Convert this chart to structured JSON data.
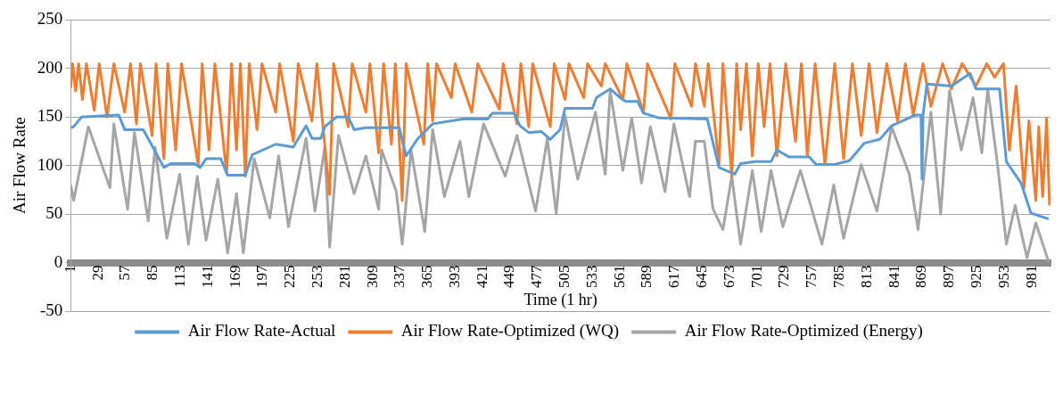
{
  "chart_data": {
    "type": "line",
    "xlabel": "Time (1 hr)",
    "ylabel": "Air Flow Rate",
    "xlim": [
      1,
      1000
    ],
    "xticks": [
      1,
      29,
      57,
      85,
      113,
      141,
      169,
      197,
      225,
      253,
      281,
      309,
      337,
      365,
      393,
      421,
      449,
      477,
      505,
      533,
      561,
      589,
      617,
      645,
      673,
      701,
      729,
      757,
      785,
      813,
      841,
      869,
      897,
      925,
      953,
      981
    ],
    "ylim": [
      -50,
      250
    ],
    "yticks": [
      -50,
      0,
      50,
      100,
      150,
      200,
      250
    ],
    "grid": "y",
    "legend": "bottom",
    "marker": "none",
    "line_style": "solid",
    "series": [
      {
        "name": "Air Flow Rate-Actual",
        "color": "#5b9bd5",
        "x": [
          1,
          4,
          12,
          50,
          56,
          75,
          96,
          103,
          127,
          133,
          139,
          154,
          161,
          179,
          186,
          210,
          228,
          241,
          247,
          256,
          260,
          272,
          284,
          290,
          302,
          336,
          343,
          355,
          370,
          401,
          426,
          431,
          453,
          459,
          468,
          481,
          490,
          500,
          505,
          533,
          537,
          551,
          561,
          567,
          579,
          585,
          601,
          650,
          662,
          678,
          684,
          699,
          715,
          721,
          733,
          754,
          761,
          779,
          795,
          810,
          826,
          838,
          862,
          868,
          869,
          870,
          874,
          899,
          918,
          924,
          948,
          955,
          970,
          980,
          998
        ],
        "values": [
          139,
          140,
          150,
          152,
          137,
          137,
          98,
          102,
          102,
          98,
          107,
          107,
          90,
          90,
          111,
          122,
          119,
          141,
          128,
          128,
          140,
          150,
          150,
          137,
          139,
          139,
          110,
          128,
          143,
          148,
          148,
          154,
          154,
          141,
          134,
          135,
          127,
          137,
          159,
          159,
          170,
          179,
          170,
          166,
          166,
          154,
          149,
          148,
          98,
          91,
          102,
          104,
          104,
          116,
          109,
          109,
          101,
          101,
          105,
          123,
          127,
          141,
          152,
          152,
          86,
          152,
          184,
          182,
          195,
          179,
          179,
          104,
          82,
          51,
          45
        ]
      },
      {
        "name": "Air Flow Rate-Optimized (WQ)",
        "color": "#ed7d31",
        "x": [
          1,
          3,
          6,
          9,
          13,
          17,
          25,
          30,
          38,
          45,
          56,
          62,
          68,
          72,
          84,
          88,
          96,
          100,
          108,
          114,
          131,
          135,
          142,
          148,
          160,
          165,
          170,
          174,
          179,
          183,
          191,
          196,
          210,
          214,
          228,
          233,
          247,
          252,
          265,
          269,
          284,
          288,
          302,
          306,
          315,
          320,
          328,
          332,
          339,
          343,
          361,
          365,
          370,
          374,
          389,
          393,
          410,
          416,
          438,
          442,
          456,
          460,
          468,
          472,
          490,
          494,
          505,
          509,
          524,
          528,
          542,
          546,
          564,
          568,
          585,
          589,
          613,
          617,
          634,
          638,
          647,
          651,
          662,
          666,
          675,
          680,
          684,
          690,
          696,
          702,
          708,
          714,
          721,
          730,
          740,
          746,
          752,
          760,
          770,
          780,
          789,
          798,
          807,
          815,
          823,
          833,
          844,
          852,
          860,
          870,
          878,
          890,
          899,
          910,
          924,
          935,
          943,
          952,
          958,
          965,
          973,
          978,
          985,
          988,
          992,
          996,
          999
        ],
        "values": [
          180,
          205,
          177,
          205,
          168,
          205,
          157,
          205,
          150,
          205,
          155,
          205,
          143,
          205,
          131,
          205,
          107,
          205,
          116,
          205,
          101,
          205,
          116,
          205,
          92,
          205,
          116,
          205,
          89,
          205,
          137,
          205,
          155,
          205,
          125,
          205,
          146,
          205,
          70,
          205,
          140,
          205,
          155,
          205,
          113,
          205,
          122,
          205,
          64,
          205,
          122,
          205,
          146,
          205,
          170,
          205,
          155,
          205,
          158,
          205,
          143,
          205,
          140,
          205,
          140,
          205,
          168,
          205,
          170,
          205,
          182,
          205,
          168,
          205,
          155,
          205,
          148,
          205,
          161,
          205,
          161,
          205,
          101,
          205,
          89,
          205,
          137,
          205,
          110,
          205,
          140,
          205,
          110,
          205,
          125,
          205,
          110,
          205,
          101,
          205,
          107,
          205,
          131,
          205,
          134,
          205,
          146,
          205,
          152,
          205,
          161,
          205,
          179,
          205,
          182,
          205,
          191,
          205,
          116,
          182,
          77,
          146,
          64,
          140,
          68,
          149,
          59
        ]
      },
      {
        "name": "Air Flow Rate-Optimized (Energy)",
        "color": "#a5a5a5",
        "x": [
          1,
          4,
          19,
          41,
          45,
          59,
          66,
          80,
          87,
          99,
          112,
          121,
          130,
          139,
          151,
          161,
          170,
          177,
          188,
          204,
          213,
          223,
          241,
          250,
          260,
          265,
          274,
          290,
          302,
          315,
          318,
          333,
          339,
          348,
          362,
          370,
          382,
          398,
          407,
          422,
          444,
          456,
          475,
          487,
          496,
          505,
          518,
          536,
          546,
          551,
          564,
          573,
          583,
          592,
          607,
          616,
          632,
          638,
          647,
          656,
          666,
          675,
          684,
          696,
          705,
          715,
          727,
          745,
          767,
          779,
          789,
          807,
          823,
          838,
          856,
          865,
          878,
          888,
          897,
          909,
          921,
          930,
          936,
          946,
          955,
          964,
          976,
          985,
          998
        ],
        "values": [
          80,
          64,
          140,
          77,
          143,
          55,
          134,
          43,
          119,
          25,
          91,
          19,
          89,
          23,
          86,
          10,
          71,
          10,
          107,
          46,
          110,
          37,
          128,
          53,
          119,
          16,
          131,
          71,
          110,
          55,
          116,
          73,
          19,
          116,
          32,
          137,
          68,
          125,
          68,
          143,
          89,
          131,
          53,
          128,
          50,
          152,
          86,
          155,
          91,
          177,
          95,
          149,
          82,
          140,
          73,
          143,
          68,
          125,
          125,
          55,
          34,
          89,
          19,
          95,
          32,
          95,
          37,
          95,
          19,
          80,
          25,
          101,
          53,
          140,
          91,
          34,
          155,
          50,
          177,
          116,
          170,
          113,
          179,
          101,
          19,
          59,
          5,
          41,
          1
        ]
      }
    ]
  }
}
